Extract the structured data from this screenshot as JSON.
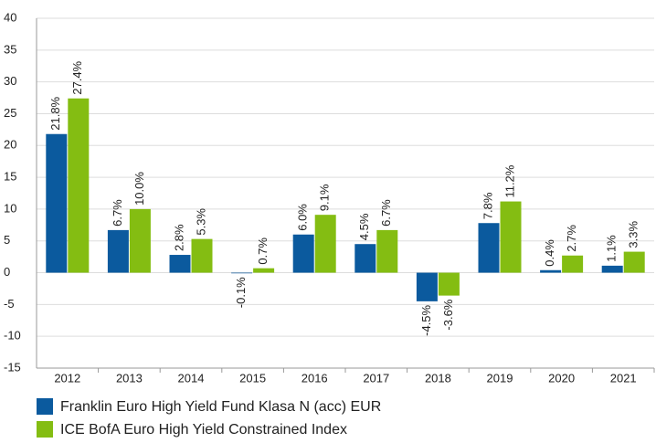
{
  "chart_data": {
    "type": "bar",
    "categories": [
      "2012",
      "2013",
      "2014",
      "2015",
      "2016",
      "2017",
      "2018",
      "2019",
      "2020",
      "2021"
    ],
    "series": [
      {
        "name": "Franklin Euro High Yield Fund Klasa N (acc) EUR",
        "color": "#0b5a9e",
        "values": [
          21.8,
          6.7,
          2.8,
          -0.1,
          6.0,
          4.5,
          -4.5,
          7.8,
          0.4,
          1.1
        ],
        "value_labels": [
          "21.8%",
          "6.7%",
          "2.8%",
          "-0.1%",
          "6.0%",
          "4.5%",
          "-4.5%",
          "7.8%",
          "0.4%",
          "1.1%"
        ]
      },
      {
        "name": "ICE BofA Euro High Yield Constrained Index",
        "color": "#84bd12",
        "values": [
          27.4,
          10.0,
          5.3,
          0.7,
          9.1,
          6.7,
          -3.6,
          11.2,
          2.7,
          3.3
        ],
        "value_labels": [
          "27.4%",
          "10.0%",
          "5.3%",
          "0.7%",
          "9.1%",
          "6.7%",
          "-3.6%",
          "11.2%",
          "2.7%",
          "3.3%"
        ]
      }
    ],
    "ylim": [
      -15,
      40
    ],
    "yticks": [
      -15,
      -10,
      -5,
      0,
      5,
      10,
      15,
      20,
      25,
      30,
      35,
      40
    ],
    "grid": true
  }
}
